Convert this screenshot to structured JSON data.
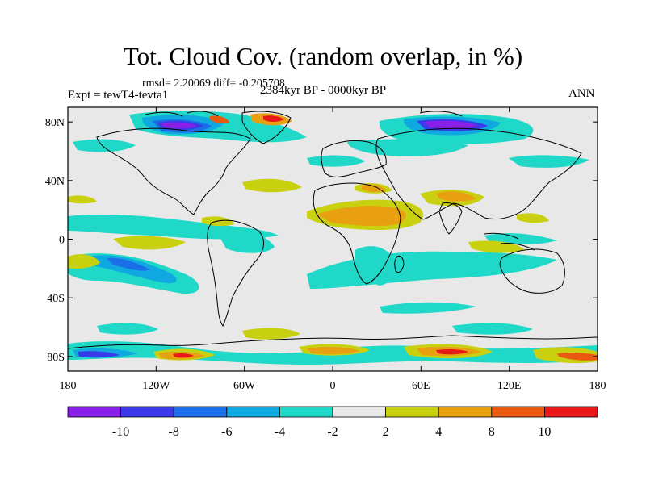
{
  "title": "Tot. Cloud Cov. (random overlap, in %)",
  "stats": "rmsd= 2.20069 diff= -0.205708",
  "experiment": "Expt = tewT4-tevta1",
  "period": "2384kyr BP - 0000kyr BP",
  "season": "ANN",
  "map": {
    "lat_ticks": [
      "80N",
      "40N",
      "0",
      "40S",
      "80S"
    ],
    "lon_ticks": [
      "180",
      "120W",
      "60W",
      "0",
      "60E",
      "120E",
      "180"
    ],
    "lat_values": [
      80,
      40,
      0,
      -40,
      -80
    ],
    "lon_values": [
      -180,
      -120,
      -60,
      0,
      60,
      120,
      180
    ],
    "lat_range": [
      -90,
      90
    ],
    "lon_range": [
      -180,
      180
    ]
  },
  "colorbar": {
    "labels": [
      "-10",
      "-8",
      "-6",
      "-4",
      "-2",
      "2",
      "4",
      "8",
      "10"
    ],
    "colors": [
      "#8a1fe8",
      "#3a3ae8",
      "#1a6ee8",
      "#10a8e0",
      "#20d8c8",
      "#e8e8e8",
      "#c8d010",
      "#e8a010",
      "#e85a10",
      "#e81818"
    ]
  },
  "colors": {
    "neutral": "#e8e8e8",
    "cyan": "#20d8c8",
    "lightblue": "#10a8e0",
    "blue": "#1a6ee8",
    "darkblue": "#3a3ae8",
    "purple": "#8a1fe8",
    "yellow": "#c8d010",
    "orange": "#e8a010",
    "darkorange": "#e85a10",
    "red": "#e81818"
  }
}
